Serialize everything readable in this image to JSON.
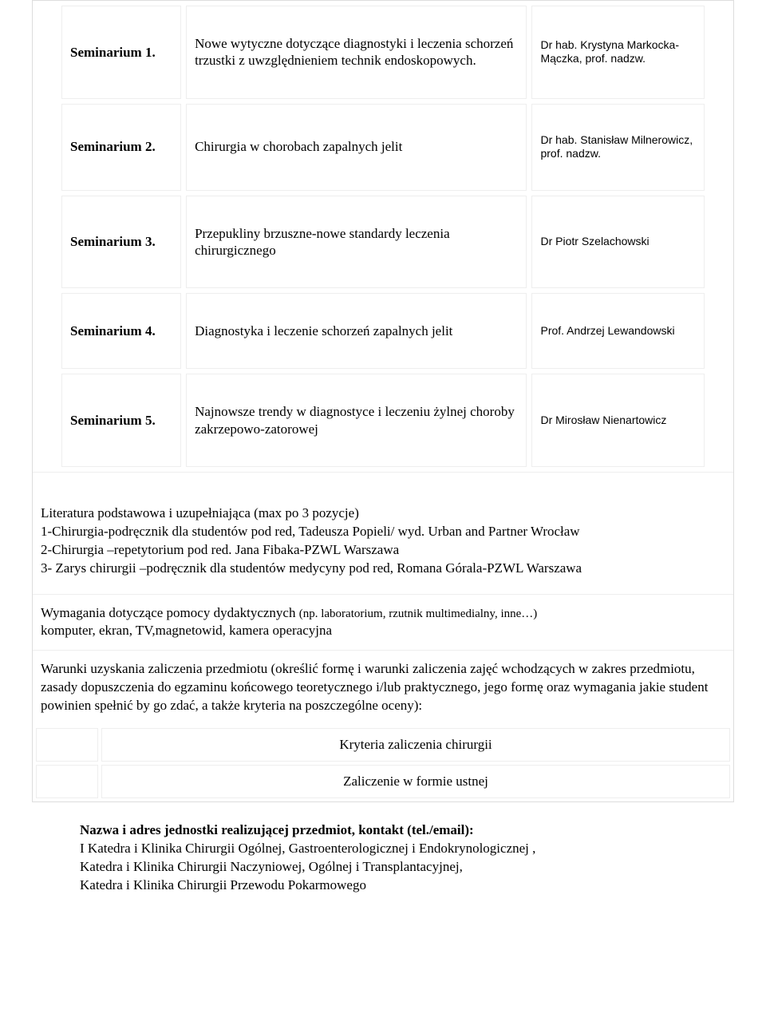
{
  "seminars": [
    {
      "label": "Seminarium 1.",
      "topic": "Nowe wytyczne dotyczące diagnostyki i leczenia schorzeń trzustki z uwzględnieniem technik endoskopowych.",
      "lecturer": "Dr hab. Krystyna Markocka-Mączka, prof. nadzw."
    },
    {
      "label": "Seminarium 2.",
      "topic": "Chirurgia w chorobach zapalnych jelit",
      "lecturer": "Dr hab. Stanisław Milnerowicz, prof. nadzw."
    },
    {
      "label": "Seminarium 3.",
      "topic": "Przepukliny brzuszne-nowe standardy leczenia chirurgicznego",
      "lecturer": "Dr Piotr Szelachowski"
    },
    {
      "label": "Seminarium 4.",
      "topic": "Diagnostyka i leczenie schorzeń zapalnych jelit",
      "lecturer": "Prof. Andrzej Lewandowski"
    },
    {
      "label": "Seminarium 5.",
      "topic": "Najnowsze trendy w diagnostyce i leczeniu żylnej choroby zakrzepowo-zatorowej",
      "lecturer": "Dr Mirosław Nienartowicz"
    }
  ],
  "literature": {
    "heading": "Literatura podstawowa i uzupełniająca (max po 3 pozycje)",
    "items": [
      "1-Chirurgia-podręcznik dla studentów pod red, Tadeusza Popieli/ wyd. Urban and Partner Wrocław",
      "2-Chirurgia –repetytorium pod red. Jana Fibaka-PZWL Warszawa",
      "3- Zarys chirurgii –podręcznik dla studentów medycyny pod red,  Romana Górala-PZWL Warszawa"
    ]
  },
  "requirements": {
    "label": "Wymagania dotyczące pomocy dydaktycznych ",
    "hint": "(np. laboratorium, rzutnik multimedialny, inne…)",
    "value": "komputer, ekran, TV,magnetowid, kamera operacyjna"
  },
  "conditions": {
    "text": "Warunki uzyskania zaliczenia przedmiotu (określić formę i warunki zaliczenia zajęć wchodzących w zakres przedmiotu, zasady dopuszczenia do egzaminu końcowego teoretycznego i/lub praktycznego, jego formę oraz wymagania jakie student powinien spełnić by go zdać, a także kryteria na poszczególne oceny):"
  },
  "criteria": {
    "row1": "Kryteria zaliczenia chirurgii",
    "row2": "Zaliczenie w formie ustnej"
  },
  "footer": {
    "heading": "Nazwa i adres jednostki realizującej przedmiot, kontakt (tel./email):",
    "lines": [
      "I Katedra  i Klinika Chirurgii Ogólnej, Gastroenterologicznej  i Endokrynologicznej ,",
      "Katedra i Klinika Chirurgii Naczyniowej, Ogólnej i Transplantacyjnej,",
      "Katedra i Klinika Chirurgii Przewodu Pokarmowego"
    ]
  }
}
